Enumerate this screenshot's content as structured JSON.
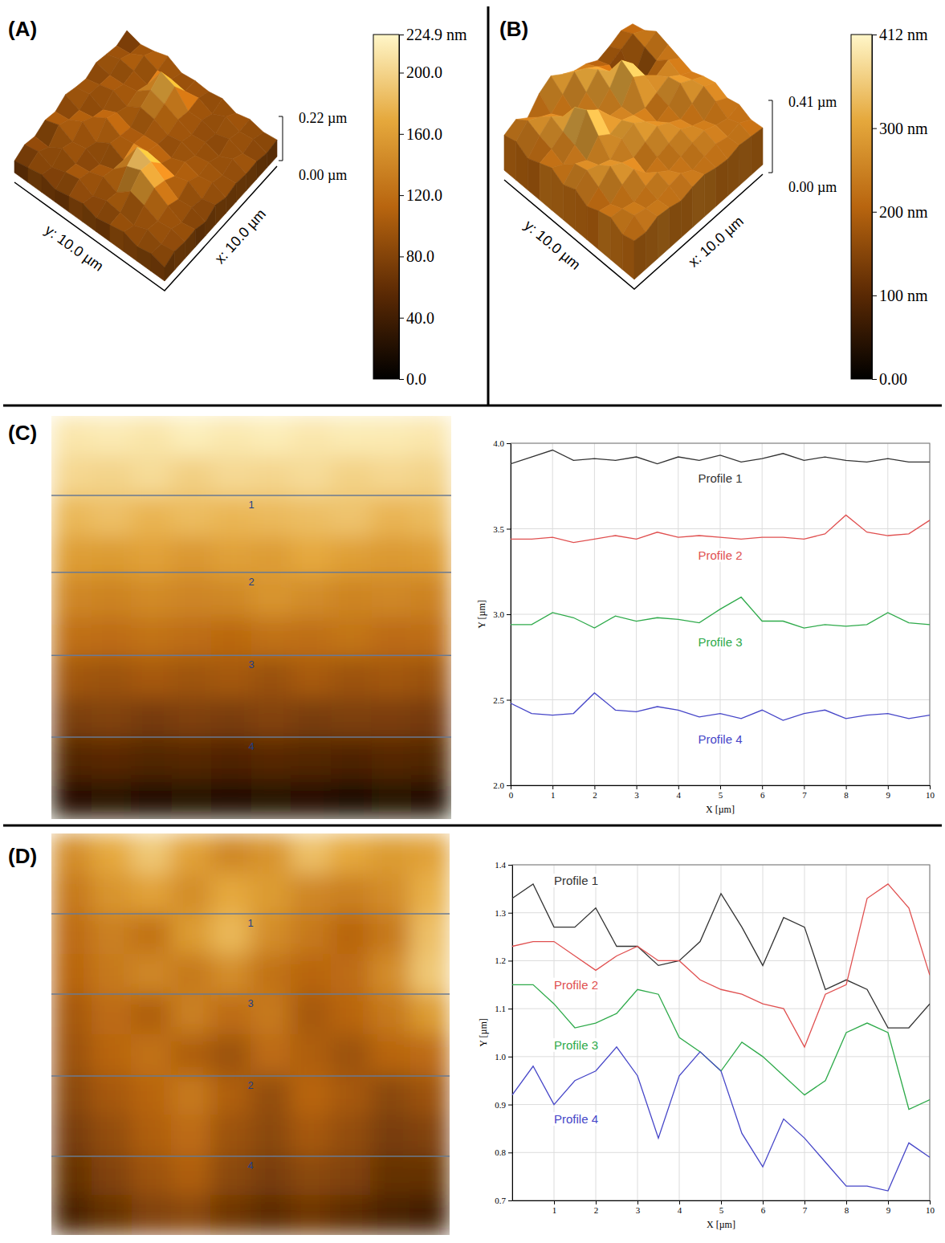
{
  "chart_data": [
    {
      "type": "surface3d",
      "panel": "(A)",
      "x_label": "x: 10.0 µm",
      "y_label": "y: 10.0 µm",
      "z_top_label": "0.22 µm",
      "z_bottom_label": "0.00 µm",
      "colorbar": {
        "range": [
          0,
          224.9
        ],
        "ticks": [
          {
            "value": 0,
            "label": "0.0"
          },
          {
            "value": 40,
            "label": "40.0"
          },
          {
            "value": 80,
            "label": "80.0"
          },
          {
            "value": 120,
            "label": "120.0"
          },
          {
            "value": 160,
            "label": "160.0"
          },
          {
            "value": 200,
            "label": "200.0"
          },
          {
            "value": 224.9,
            "label": "224.9 nm"
          }
        ]
      },
      "heights": [
        [
          60,
          85,
          70,
          95,
          80,
          110,
          90,
          75,
          100,
          85,
          70,
          90
        ],
        [
          75,
          100,
          65,
          120,
          90,
          80,
          105,
          95,
          85,
          110,
          80,
          70
        ],
        [
          90,
          70,
          110,
          85,
          130,
          95,
          75,
          115,
          90,
          100,
          120,
          85
        ],
        [
          65,
          95,
          80,
          100,
          75,
          140,
          110,
          85,
          105,
          80,
          95,
          110
        ],
        [
          80,
          110,
          90,
          70,
          120,
          100,
          85,
          130,
          160,
          195,
          100,
          75
        ],
        [
          95,
          75,
          115,
          95,
          85,
          110,
          95,
          120,
          140,
          170,
          90,
          85
        ],
        [
          70,
          100,
          85,
          160,
          200,
          120,
          100,
          90,
          110,
          95,
          105,
          80
        ],
        [
          85,
          90,
          140,
          190,
          175,
          110,
          80,
          105,
          85,
          100,
          75,
          95
        ],
        [
          100,
          75,
          120,
          150,
          130,
          95,
          110,
          85,
          95,
          80,
          110,
          70
        ],
        [
          75,
          105,
          90,
          110,
          85,
          120,
          90,
          100,
          75,
          105,
          85,
          90
        ],
        [
          90,
          80,
          100,
          75,
          95,
          80,
          105,
          85,
          110,
          80,
          95,
          75
        ],
        [
          70,
          95,
          85,
          90,
          70,
          100,
          80,
          95,
          85,
          90,
          75,
          85
        ]
      ]
    },
    {
      "type": "surface3d",
      "panel": "(B)",
      "x_label": "x: 10.0 µm",
      "y_label": "y: 10.0 µm",
      "z_top_label": "0.41 µm",
      "z_bottom_label": "0.00 µm",
      "colorbar": {
        "range": [
          0,
          412
        ],
        "ticks": [
          {
            "value": 0,
            "label": "0.00"
          },
          {
            "value": 100,
            "label": "100 nm"
          },
          {
            "value": 200,
            "label": "200 nm"
          },
          {
            "value": 300,
            "label": "300 nm"
          },
          {
            "value": 412,
            "label": "412 nm"
          }
        ]
      },
      "heights": [
        [
          200,
          230,
          180,
          260,
          300,
          250,
          210,
          190,
          150,
          170,
          200,
          180
        ],
        [
          220,
          280,
          240,
          200,
          250,
          320,
          280,
          230,
          180,
          210,
          240,
          200
        ],
        [
          180,
          250,
          300,
          240,
          200,
          260,
          330,
          260,
          120,
          90,
          220,
          250
        ],
        [
          210,
          230,
          270,
          350,
          260,
          220,
          280,
          380,
          300,
          150,
          200,
          230
        ],
        [
          240,
          200,
          250,
          390,
          330,
          240,
          230,
          340,
          290,
          230,
          260,
          210
        ],
        [
          200,
          260,
          220,
          300,
          250,
          270,
          240,
          220,
          250,
          280,
          230,
          190
        ],
        [
          230,
          280,
          250,
          220,
          280,
          310,
          260,
          200,
          230,
          300,
          260,
          220
        ],
        [
          190,
          240,
          300,
          260,
          230,
          260,
          290,
          250,
          210,
          240,
          280,
          240
        ],
        [
          220,
          200,
          250,
          280,
          200,
          230,
          250,
          270,
          230,
          200,
          250,
          210
        ],
        [
          240,
          230,
          210,
          240,
          260,
          210,
          230,
          250,
          260,
          230,
          210,
          230
        ],
        [
          200,
          250,
          230,
          220,
          240,
          250,
          210,
          230,
          240,
          220,
          240,
          200
        ],
        [
          220,
          210,
          240,
          230,
          210,
          230,
          240,
          220,
          210,
          230,
          220,
          210
        ]
      ]
    },
    {
      "type": "heatmap",
      "panel": "(C)",
      "extent": [
        0,
        10
      ],
      "zlim": [
        0,
        400
      ],
      "profile_lines": [
        {
          "label": "1",
          "y": 1.97
        },
        {
          "label": "2",
          "y": 3.88
        },
        {
          "label": "3",
          "y": 5.94
        },
        {
          "label": "4",
          "y": 7.97
        }
      ],
      "heights": [
        [
          380,
          385,
          378,
          390,
          382,
          388,
          380,
          386,
          384,
          380
        ],
        [
          360,
          355,
          365,
          350,
          362,
          358,
          366,
          352,
          360,
          355
        ],
        [
          320,
          330,
          315,
          325,
          318,
          322,
          328,
          335,
          316,
          324
        ],
        [
          285,
          280,
          290,
          275,
          288,
          282,
          300,
          286,
          278,
          284
        ],
        [
          250,
          245,
          255,
          248,
          252,
          270,
          258,
          246,
          250,
          244
        ],
        [
          215,
          210,
          220,
          212,
          205,
          218,
          214,
          222,
          208,
          212
        ],
        [
          175,
          168,
          180,
          172,
          178,
          166,
          182,
          170,
          176,
          168
        ],
        [
          135,
          140,
          128,
          138,
          132,
          142,
          130,
          136,
          134,
          128
        ],
        [
          90,
          96,
          88,
          92,
          86,
          94,
          90,
          84,
          92,
          88
        ],
        [
          40,
          46,
          38,
          44,
          36,
          42,
          40,
          34,
          42,
          38
        ]
      ]
    },
    {
      "type": "line",
      "xlabel": "X [µm]",
      "ylabel": "Y [µm]",
      "grid": true,
      "xlim": [
        0,
        10
      ],
      "ylim": [
        2,
        4
      ],
      "xticks": [
        0,
        1,
        2,
        3,
        4,
        5,
        6,
        7,
        8,
        9,
        10
      ],
      "yticks": [
        {
          "value": 2,
          "label": "2.0"
        },
        2.5,
        {
          "value": 3,
          "label": "3.0"
        },
        3.5,
        {
          "value": 4,
          "label": "4.0"
        }
      ],
      "x": [
        0,
        0.5,
        1,
        1.5,
        2,
        2.5,
        3,
        3.5,
        4,
        4.5,
        5,
        5.5,
        6,
        6.5,
        7,
        7.5,
        8,
        8.5,
        9,
        9.5,
        10
      ],
      "series": [
        {
          "name": "Profile 1",
          "color": "#333333",
          "values": [
            3.88,
            3.92,
            3.96,
            3.9,
            3.91,
            3.9,
            3.92,
            3.88,
            3.92,
            3.9,
            3.93,
            3.89,
            3.91,
            3.94,
            3.9,
            3.92,
            3.9,
            3.89,
            3.91,
            3.89,
            3.89
          ]
        },
        {
          "name": "Profile 2",
          "color": "#e05050",
          "values": [
            3.44,
            3.44,
            3.45,
            3.42,
            3.44,
            3.46,
            3.44,
            3.48,
            3.45,
            3.46,
            3.45,
            3.44,
            3.45,
            3.45,
            3.44,
            3.47,
            3.58,
            3.48,
            3.46,
            3.47,
            3.55
          ]
        },
        {
          "name": "Profile 3",
          "color": "#2eaa4a",
          "values": [
            2.94,
            2.94,
            3.01,
            2.98,
            2.92,
            2.99,
            2.96,
            2.98,
            2.97,
            2.95,
            3.03,
            3.1,
            2.96,
            2.96,
            2.92,
            2.94,
            2.93,
            2.94,
            3.01,
            2.95,
            2.94
          ]
        },
        {
          "name": "Profile 4",
          "color": "#4646c8",
          "values": [
            2.48,
            2.42,
            2.41,
            2.42,
            2.54,
            2.44,
            2.43,
            2.46,
            2.44,
            2.4,
            2.42,
            2.39,
            2.44,
            2.38,
            2.42,
            2.44,
            2.39,
            2.41,
            2.42,
            2.39,
            2.41
          ]
        }
      ]
    },
    {
      "type": "heatmap",
      "panel": "(D)",
      "extent": [
        0,
        10
      ],
      "zlim": [
        0,
        400
      ],
      "profile_lines": [
        {
          "label": "1",
          "y": 2.0
        },
        {
          "label": "3",
          "y": 4.0
        },
        {
          "label": "2",
          "y": 6.04
        },
        {
          "label": "4",
          "y": 8.04
        }
      ],
      "heights": [
        [
          260,
          300,
          340,
          290,
          250,
          270,
          330,
          300,
          280,
          290
        ],
        [
          230,
          270,
          290,
          260,
          300,
          280,
          250,
          240,
          260,
          310
        ],
        [
          210,
          240,
          220,
          280,
          320,
          260,
          230,
          200,
          230,
          330
        ],
        [
          200,
          230,
          250,
          230,
          260,
          220,
          200,
          210,
          260,
          340
        ],
        [
          180,
          210,
          190,
          240,
          210,
          230,
          180,
          200,
          230,
          280
        ],
        [
          170,
          200,
          220,
          190,
          170,
          210,
          190,
          170,
          200,
          210
        ],
        [
          150,
          180,
          200,
          230,
          190,
          160,
          200,
          180,
          150,
          170
        ],
        [
          130,
          160,
          190,
          210,
          170,
          150,
          180,
          160,
          130,
          140
        ],
        [
          110,
          140,
          170,
          190,
          150,
          130,
          150,
          140,
          110,
          110
        ],
        [
          80,
          110,
          140,
          150,
          120,
          100,
          120,
          100,
          80,
          70
        ]
      ]
    },
    {
      "type": "line",
      "xlabel": "X [µm]",
      "ylabel": "Y [µm]",
      "grid": true,
      "xlim": [
        0,
        10
      ],
      "ylim": [
        0.7,
        1.4
      ],
      "xticks": [
        1,
        2,
        3,
        4,
        5,
        6,
        7,
        8,
        9,
        10
      ],
      "yticks": [
        0.7,
        0.8,
        0.9,
        {
          "value": 1,
          "label": "1.0"
        },
        1.1,
        1.2,
        1.3,
        1.4
      ],
      "x": [
        0,
        0.5,
        1,
        1.5,
        2,
        2.5,
        3,
        3.5,
        4,
        4.5,
        5,
        5.5,
        6,
        6.5,
        7,
        7.5,
        8,
        8.5,
        9,
        9.5,
        10
      ],
      "series": [
        {
          "name": "Profile 1",
          "color": "#333333",
          "values": [
            1.33,
            1.36,
            1.27,
            1.27,
            1.31,
            1.23,
            1.23,
            1.19,
            1.2,
            1.24,
            1.34,
            1.27,
            1.19,
            1.29,
            1.27,
            1.14,
            1.16,
            1.14,
            1.06,
            1.06,
            1.11
          ]
        },
        {
          "name": "Profile 2",
          "color": "#e05050",
          "values": [
            1.23,
            1.24,
            1.24,
            1.21,
            1.18,
            1.21,
            1.23,
            1.2,
            1.2,
            1.16,
            1.14,
            1.13,
            1.11,
            1.1,
            1.02,
            1.13,
            1.15,
            1.33,
            1.36,
            1.31,
            1.17
          ]
        },
        {
          "name": "Profile 3",
          "color": "#2eaa4a",
          "values": [
            1.15,
            1.15,
            1.11,
            1.06,
            1.07,
            1.09,
            1.14,
            1.13,
            1.04,
            1.01,
            0.97,
            1.03,
            1.0,
            0.96,
            0.92,
            0.95,
            1.05,
            1.07,
            1.05,
            0.89,
            0.91
          ]
        },
        {
          "name": "Profile 4",
          "color": "#4646c8",
          "values": [
            0.92,
            0.98,
            0.9,
            0.95,
            0.97,
            1.02,
            0.96,
            0.83,
            0.96,
            1.01,
            0.97,
            0.84,
            0.77,
            0.87,
            0.83,
            0.78,
            0.73,
            0.73,
            0.72,
            0.82,
            0.79
          ]
        }
      ]
    }
  ]
}
